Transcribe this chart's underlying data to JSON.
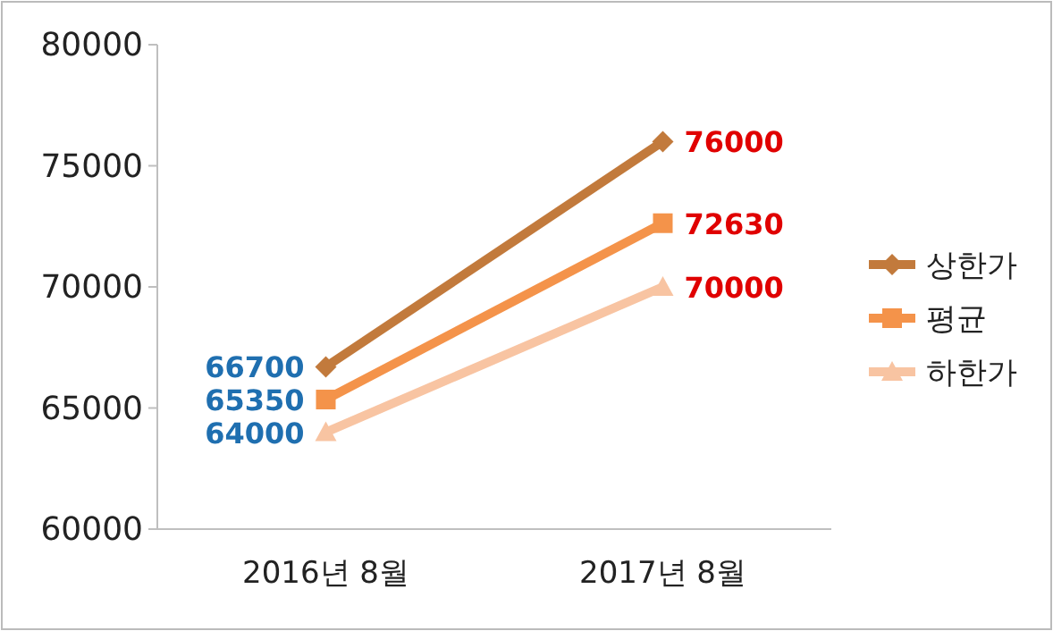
{
  "chart_data": {
    "type": "line",
    "categories": [
      "2016년 8월",
      "2017년 8월"
    ],
    "series": [
      {
        "name": "상한가",
        "color": "#c27a3c",
        "marker": "diamond",
        "values": [
          66700,
          76000
        ]
      },
      {
        "name": "평균",
        "color": "#f4934a",
        "marker": "square",
        "values": [
          65350,
          72630
        ]
      },
      {
        "name": "하한가",
        "color": "#f8c4a2",
        "marker": "triangle",
        "values": [
          64000,
          70000
        ]
      }
    ],
    "ylim": [
      60000,
      80000
    ],
    "yticks": [
      60000,
      65000,
      70000,
      75000,
      80000
    ],
    "grid": false,
    "legend": "right",
    "data_labels": true
  }
}
